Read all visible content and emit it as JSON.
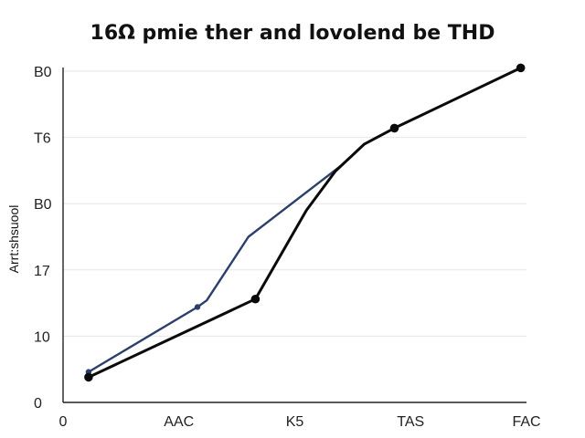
{
  "chart_data": {
    "type": "line",
    "title": "16Ω pmie ther and  lovolend be THD",
    "xlabel": "",
    "ylabel": "Arrt:shsuool",
    "x_tick_labels": [
      "0",
      "AAC",
      "K5",
      "TAS",
      "FAC"
    ],
    "x_tick_positions": [
      0,
      1,
      2,
      3,
      4
    ],
    "y_tick_labels": [
      "0",
      "10",
      "17",
      "B0",
      "T6",
      "B0"
    ],
    "y_tick_positions": [
      0,
      1,
      2,
      3,
      4,
      5
    ],
    "xlim": [
      0,
      4
    ],
    "ylim": [
      0,
      5
    ],
    "grid": true,
    "series": [
      {
        "color": "#2b3f6b",
        "marker": "small-dot",
        "points": [
          {
            "x": 0.22,
            "y": 0.46
          },
          {
            "x": 1.16,
            "y": 1.44
          },
          {
            "x": 1.24,
            "y": 1.54
          },
          {
            "x": 1.6,
            "y": 2.5
          },
          {
            "x": 2.42,
            "y": 3.6
          }
        ],
        "marked_points": [
          0,
          1
        ]
      },
      {
        "color": "#0a0a0a",
        "marker": "dot",
        "points": [
          {
            "x": 0.22,
            "y": 0.38
          },
          {
            "x": 1.66,
            "y": 1.56
          },
          {
            "x": 2.1,
            "y": 2.9
          },
          {
            "x": 2.35,
            "y": 3.49
          },
          {
            "x": 2.6,
            "y": 3.9
          },
          {
            "x": 2.86,
            "y": 4.14
          },
          {
            "x": 3.95,
            "y": 5.05
          }
        ],
        "marked_points": [
          0,
          1,
          5,
          6
        ]
      }
    ]
  }
}
